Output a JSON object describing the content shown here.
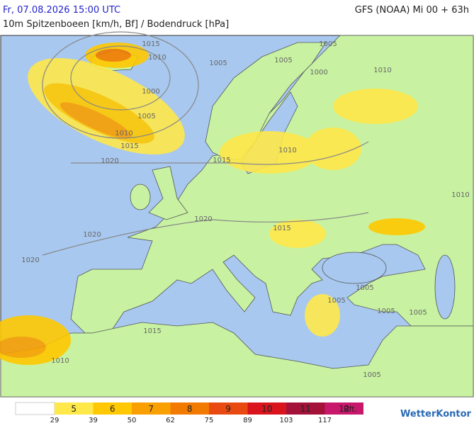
{
  "header": {
    "datetime": "Fr, 07.08.2026 15:00 UTC",
    "model": "GFS (NOAA) Mi 00 + 63h",
    "subtitle": "10m Spitzenboeen [km/h, Bf] / Bodendruck [hPa]"
  },
  "isobar_labels": [
    "1015",
    "1010",
    "1005",
    "1005",
    "1005",
    "1000",
    "1010",
    "1000",
    "1005",
    "1010",
    "1015",
    "1020",
    "1015",
    "1010",
    "1020",
    "1020",
    "1020",
    "1015",
    "1005",
    "1005",
    "1005",
    "1005",
    "1015",
    "1010",
    "1005",
    "1010"
  ],
  "legend": {
    "classes": [
      {
        "label": "5",
        "color": "#ffe84a"
      },
      {
        "label": "6",
        "color": "#ffc800"
      },
      {
        "label": "7",
        "color": "#f9a000"
      },
      {
        "label": "8",
        "color": "#f27a00"
      },
      {
        "label": "9",
        "color": "#e84a12"
      },
      {
        "label": "10",
        "color": "#d9141d"
      },
      {
        "label": "11",
        "color": "#a4123a"
      },
      {
        "label": "12",
        "color": "#c8186b"
      }
    ],
    "thresholds": [
      29,
      39,
      50,
      62,
      75,
      89,
      103,
      117
    ],
    "unit": "Bft."
  },
  "logo": "WetterKontor"
}
